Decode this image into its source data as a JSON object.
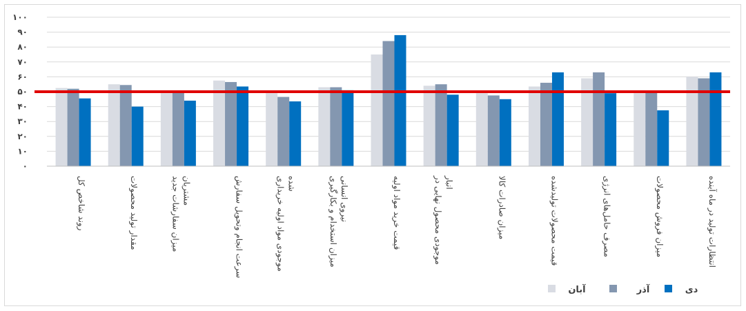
{
  "chart_data": {
    "type": "bar",
    "ylim": [
      0,
      100
    ],
    "y_ticks": [
      "۰",
      "۱۰",
      "۲۰",
      "۳۰",
      "۴۰",
      "۵۰",
      "۶۰",
      "۷۰",
      "۸۰",
      "۹۰",
      "۱۰۰"
    ],
    "y_tick_values": [
      0,
      10,
      20,
      30,
      40,
      50,
      60,
      70,
      80,
      90,
      100
    ],
    "grid": true,
    "reference_line": {
      "value": 50,
      "color": "#E00000"
    },
    "categories": [
      [
        "روند شاخص کل"
      ],
      [
        "مقدار تولید محصولات"
      ],
      [
        "میزان سفارشات جدید",
        "مشتریان"
      ],
      [
        "سرعت انجام وتحویل سفارش"
      ],
      [
        "موجودی مواد اولیه خریداری",
        "شده"
      ],
      [
        "میزان استخدام و بکارگیری",
        "نیروی انسانی"
      ],
      [
        "قیمت خرید مواد اولیه"
      ],
      [
        "موجودی محصول نهایی در",
        "انبار"
      ],
      [
        "میزان صادرات کالا"
      ],
      [
        "قیمت محصولات تولیدشده"
      ],
      [
        "مصرف حامل‌های انرژی"
      ],
      [
        "میزان فروش محصولات"
      ],
      [
        "انتظارات تولید در ماه آینده"
      ]
    ],
    "series": [
      {
        "name": "آبان",
        "color": "#D9DCE3",
        "values": [
          52.5,
          55,
          49,
          57.5,
          49,
          53,
          75,
          54,
          49,
          53.5,
          59,
          49,
          60
        ]
      },
      {
        "name": "آذر",
        "color": "#8497B0",
        "values": [
          52,
          54.5,
          50,
          56.5,
          46.5,
          53,
          84,
          55,
          47.5,
          56,
          63,
          49.5,
          59
        ]
      },
      {
        "name": "دی",
        "color": "#0070C0",
        "values": [
          45.5,
          40,
          44,
          53.5,
          43.5,
          51,
          88,
          48,
          45,
          63,
          49,
          37.5,
          63
        ]
      }
    ],
    "legend_position": "bottom-right"
  }
}
